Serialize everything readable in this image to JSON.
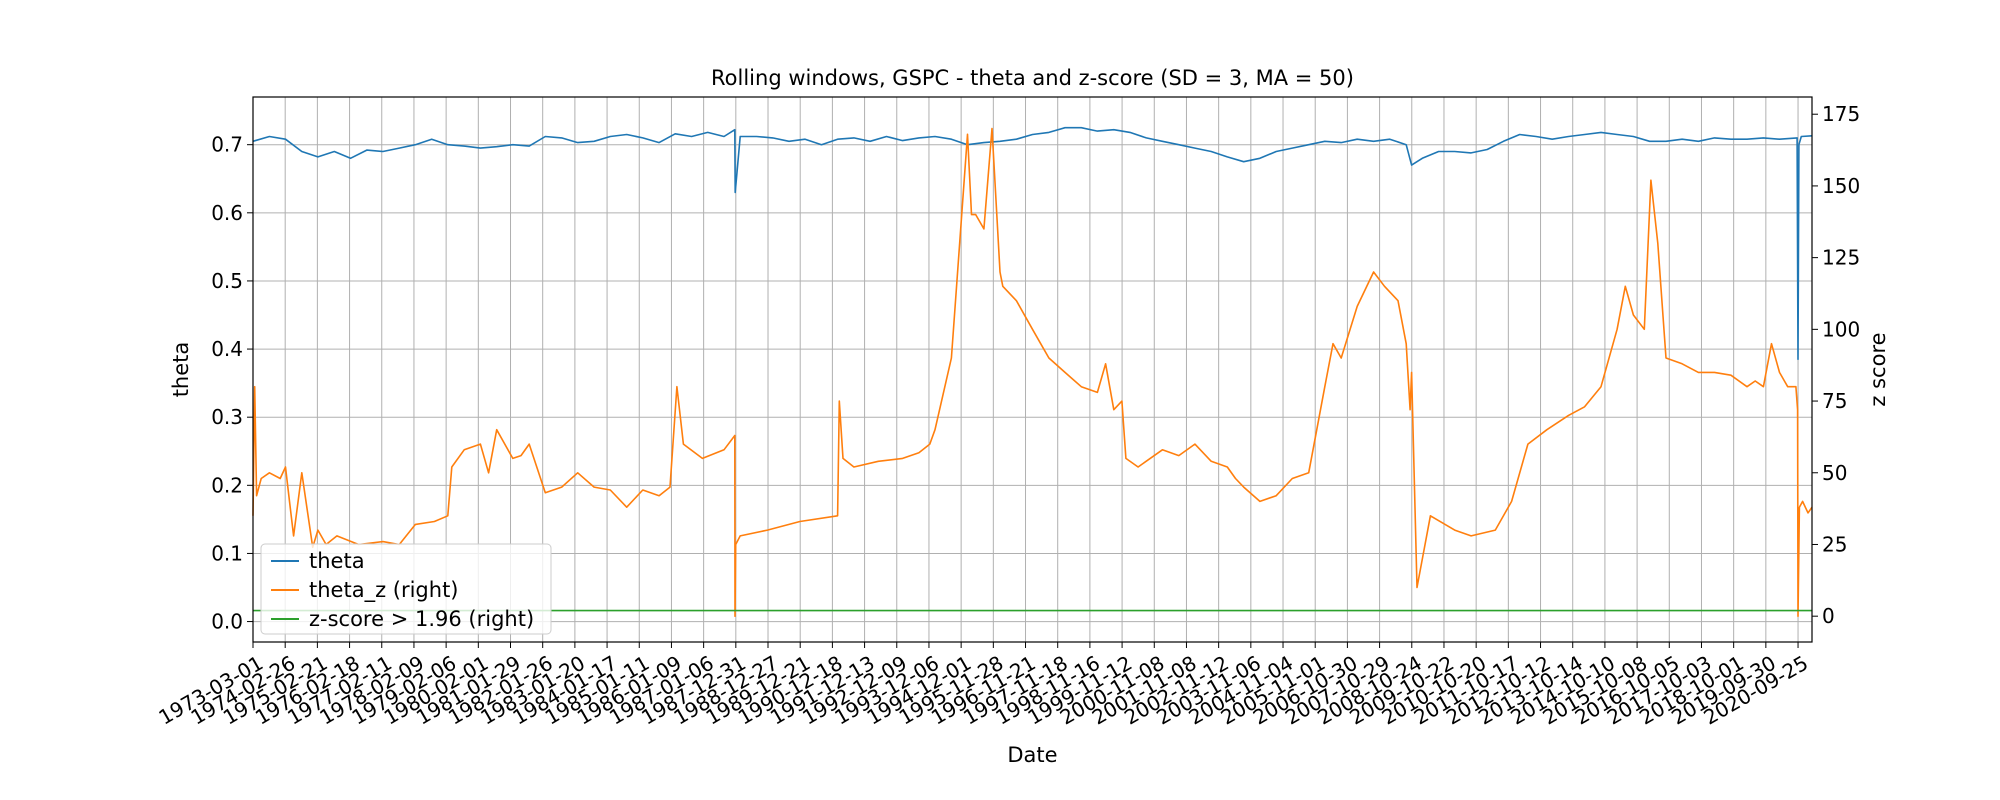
{
  "chart_data": {
    "type": "line",
    "title": "Rolling windows, GSPC - theta and z-score (SD = 3, MA = 50)",
    "xlabel": "Date",
    "ylabel": "theta",
    "ylabel_right": "z score",
    "ylim": [
      -0.03,
      0.77
    ],
    "ylim_right": [
      -9,
      181
    ],
    "yticks": [
      "0.0",
      "0.1",
      "0.2",
      "0.3",
      "0.4",
      "0.5",
      "0.6",
      "0.7"
    ],
    "yticks_right": [
      "0",
      "25",
      "50",
      "75",
      "100",
      "125",
      "150",
      "175"
    ],
    "grid": true,
    "legend_position": "lower-left",
    "xtick_labels": [
      "1973-03-01",
      "1974-02-26",
      "1975-02-21",
      "1976-02-18",
      "1977-02-11",
      "1978-02-09",
      "1979-02-06",
      "1980-02-01",
      "1981-01-29",
      "1982-01-26",
      "1983-01-20",
      "1984-01-17",
      "1985-01-11",
      "1986-01-09",
      "1987-01-06",
      "1987-12-31",
      "1988-12-27",
      "1989-12-21",
      "1990-12-18",
      "1991-12-13",
      "1992-12-09",
      "1993-12-06",
      "1994-12-01",
      "1995-11-28",
      "1996-11-21",
      "1997-11-18",
      "1998-11-16",
      "1999-11-12",
      "2000-11-08",
      "2001-11-08",
      "2002-11-12",
      "2003-11-06",
      "2004-11-04",
      "2005-11-01",
      "2006-10-30",
      "2007-10-29",
      "2008-10-24",
      "2009-10-22",
      "2010-10-20",
      "2011-10-17",
      "2012-10-12",
      "2013-10-14",
      "2014-10-10",
      "2015-10-08",
      "2016-10-05",
      "2017-10-03",
      "2018-10-01",
      "2019-09-30",
      "2020-09-25"
    ],
    "x_range": [
      "1973-03-01",
      "2021-03-01"
    ],
    "series": [
      {
        "name": "theta",
        "axis": "left",
        "color": "#1f77b4",
        "x": [
          "1973-03-01",
          "1973-09-01",
          "1974-03-01",
          "1974-09-01",
          "1975-03-01",
          "1975-09-01",
          "1976-03-01",
          "1976-09-01",
          "1977-03-01",
          "1977-09-01",
          "1978-03-01",
          "1978-09-01",
          "1979-03-01",
          "1979-09-01",
          "1980-03-01",
          "1980-09-01",
          "1981-03-01",
          "1981-09-01",
          "1982-03-01",
          "1982-09-01",
          "1983-03-01",
          "1983-09-01",
          "1984-03-01",
          "1984-09-01",
          "1985-03-01",
          "1985-09-01",
          "1986-03-01",
          "1986-09-01",
          "1987-03-01",
          "1987-09-01",
          "1987-12-31",
          "1988-01-05",
          "1988-03-01",
          "1988-09-01",
          "1989-03-01",
          "1989-09-01",
          "1990-03-01",
          "1990-09-01",
          "1991-03-01",
          "1991-09-01",
          "1992-03-01",
          "1992-09-01",
          "1993-03-01",
          "1993-09-01",
          "1994-03-01",
          "1994-09-01",
          "1995-03-01",
          "1995-09-01",
          "1996-03-01",
          "1996-09-01",
          "1997-03-01",
          "1997-09-01",
          "1998-03-01",
          "1998-09-01",
          "1999-03-01",
          "1999-09-01",
          "2000-03-01",
          "2000-09-01",
          "2001-03-01",
          "2001-09-01",
          "2002-03-01",
          "2002-09-01",
          "2003-03-01",
          "2003-09-01",
          "2004-03-01",
          "2004-09-01",
          "2005-03-01",
          "2005-09-01",
          "2006-03-01",
          "2006-09-01",
          "2007-03-01",
          "2007-09-01",
          "2008-03-01",
          "2008-09-01",
          "2008-11-01",
          "2009-03-01",
          "2009-09-01",
          "2010-03-01",
          "2010-09-01",
          "2011-03-01",
          "2011-09-01",
          "2012-03-01",
          "2012-09-01",
          "2013-03-01",
          "2013-09-01",
          "2014-03-01",
          "2014-09-01",
          "2015-03-01",
          "2015-09-01",
          "2016-03-01",
          "2016-09-01",
          "2017-03-01",
          "2017-09-01",
          "2018-03-01",
          "2018-09-01",
          "2019-03-01",
          "2019-09-01",
          "2020-03-01",
          "2020-09-15",
          "2020-09-25",
          "2020-10-05",
          "2020-11-01",
          "2021-03-01"
        ],
        "values": [
          0.705,
          0.712,
          0.708,
          0.69,
          0.682,
          0.69,
          0.68,
          0.692,
          0.69,
          0.695,
          0.7,
          0.708,
          0.7,
          0.698,
          0.695,
          0.697,
          0.7,
          0.698,
          0.712,
          0.71,
          0.703,
          0.705,
          0.712,
          0.715,
          0.71,
          0.703,
          0.716,
          0.712,
          0.718,
          0.712,
          0.722,
          0.63,
          0.712,
          0.712,
          0.71,
          0.705,
          0.708,
          0.7,
          0.708,
          0.71,
          0.705,
          0.712,
          0.706,
          0.71,
          0.712,
          0.708,
          0.7,
          0.703,
          0.705,
          0.708,
          0.715,
          0.718,
          0.725,
          0.725,
          0.72,
          0.722,
          0.718,
          0.71,
          0.705,
          0.7,
          0.695,
          0.69,
          0.682,
          0.675,
          0.68,
          0.69,
          0.695,
          0.7,
          0.705,
          0.703,
          0.708,
          0.705,
          0.708,
          0.7,
          0.67,
          0.68,
          0.69,
          0.69,
          0.688,
          0.693,
          0.705,
          0.715,
          0.712,
          0.708,
          0.712,
          0.715,
          0.718,
          0.715,
          0.712,
          0.705,
          0.705,
          0.708,
          0.705,
          0.71,
          0.708,
          0.708,
          0.71,
          0.708,
          0.71,
          0.385,
          0.7,
          0.712,
          0.713
        ]
      },
      {
        "name": "theta_z (right)",
        "axis": "right",
        "color": "#ff7f0e",
        "x": [
          "1973-03-01",
          "1973-03-20",
          "1973-04-10",
          "1973-06-01",
          "1973-09-01",
          "1974-01-01",
          "1974-03-01",
          "1974-04-15",
          "1974-06-01",
          "1974-09-01",
          "1975-01-01",
          "1975-03-01",
          "1975-06-01",
          "1975-10-01",
          "1976-06-01",
          "1977-03-01",
          "1977-09-01",
          "1978-03-01",
          "1978-10-01",
          "1979-03-01",
          "1979-04-15",
          "1979-09-01",
          "1980-03-01",
          "1980-06-01",
          "1980-09-01",
          "1981-03-01",
          "1981-06-01",
          "1981-09-01",
          "1982-03-01",
          "1982-09-01",
          "1983-03-01",
          "1983-09-01",
          "1984-03-01",
          "1984-09-01",
          "1985-03-01",
          "1985-09-01",
          "1986-01-01",
          "1986-03-20",
          "1986-06-01",
          "1987-01-01",
          "1987-09-01",
          "1987-12-31",
          "1988-01-02",
          "1988-01-10",
          "1988-03-01",
          "1989-01-01",
          "1990-01-01",
          "1991-03-01",
          "1991-03-20",
          "1991-05-01",
          "1991-09-01",
          "1992-06-01",
          "1993-03-01",
          "1993-09-01",
          "1994-01-01",
          "1994-03-01",
          "1994-09-01",
          "1995-03-01",
          "1995-04-15",
          "1995-06-01",
          "1995-09-01",
          "1995-12-01",
          "1996-03-01",
          "1996-04-01",
          "1996-09-01",
          "1997-03-01",
          "1997-06-01",
          "1997-09-01",
          "1998-03-01",
          "1998-09-01",
          "1999-03-01",
          "1999-06-01",
          "1999-09-01",
          "1999-12-01",
          "2000-01-15",
          "2000-06-01",
          "2001-03-01",
          "2001-09-01",
          "2002-03-01",
          "2002-09-01",
          "2003-03-01",
          "2003-06-01",
          "2003-09-01",
          "2004-03-01",
          "2004-09-01",
          "2005-03-01",
          "2005-09-01",
          "2006-03-01",
          "2006-06-01",
          "2006-09-01",
          "2007-03-01",
          "2007-09-01",
          "2008-01-01",
          "2008-06-01",
          "2008-09-01",
          "2008-10-15",
          "2008-11-01",
          "2009-01-01",
          "2009-06-01",
          "2010-03-01",
          "2010-09-01",
          "2011-06-01",
          "2011-12-01",
          "2012-06-01",
          "2013-01-01",
          "2013-09-01",
          "2014-03-01",
          "2014-09-01",
          "2015-03-01",
          "2015-06-01",
          "2015-09-01",
          "2016-01-01",
          "2016-03-15",
          "2016-06-01",
          "2016-09-01",
          "2017-03-01",
          "2017-09-01",
          "2018-03-01",
          "2018-09-01",
          "2019-03-01",
          "2019-06-01",
          "2019-09-01",
          "2019-12-01",
          "2020-03-01",
          "2020-06-01",
          "2020-09-01",
          "2020-09-20",
          "2020-09-25",
          "2020-10-10",
          "2020-11-15",
          "2021-01-15",
          "2021-03-01"
        ],
        "values": [
          35,
          80,
          42,
          48,
          50,
          48,
          52,
          40,
          28,
          50,
          24,
          30,
          25,
          28,
          25,
          26,
          25,
          32,
          33,
          35,
          52,
          58,
          60,
          50,
          65,
          55,
          56,
          60,
          43,
          45,
          50,
          45,
          44,
          38,
          44,
          42,
          45,
          80,
          60,
          55,
          58,
          63,
          0,
          25,
          28,
          30,
          33,
          35,
          75,
          55,
          52,
          54,
          55,
          57,
          60,
          65,
          90,
          168,
          140,
          140,
          135,
          170,
          120,
          115,
          110,
          100,
          95,
          90,
          85,
          80,
          78,
          88,
          72,
          75,
          55,
          52,
          58,
          56,
          60,
          54,
          52,
          48,
          45,
          40,
          42,
          48,
          50,
          80,
          95,
          90,
          108,
          120,
          115,
          110,
          95,
          72,
          85,
          10,
          35,
          30,
          28,
          30,
          40,
          60,
          65,
          70,
          73,
          80,
          100,
          115,
          105,
          100,
          152,
          130,
          90,
          88,
          85,
          85,
          84,
          80,
          82,
          80,
          95,
          85,
          80,
          80,
          72,
          0,
          38,
          40,
          36,
          38
        ]
      },
      {
        "name": "z-score > 1.96 (right)",
        "axis": "right",
        "color": "#2ca02c",
        "x": [
          "1973-03-01",
          "2021-03-01"
        ],
        "values": [
          1.96,
          1.96
        ]
      }
    ]
  }
}
